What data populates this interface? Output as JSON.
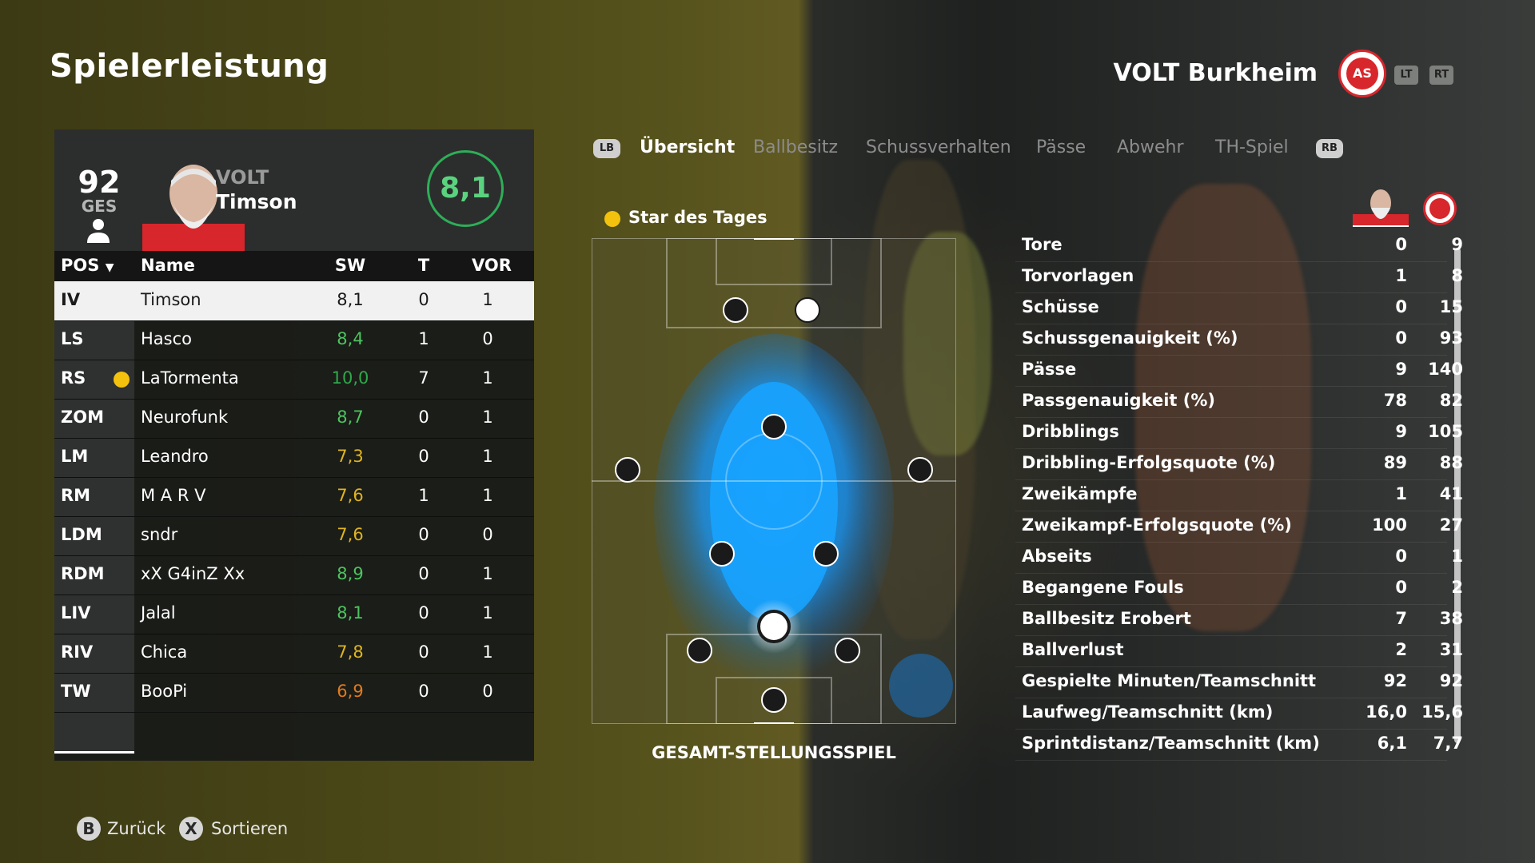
{
  "title": "Spielerleistung",
  "team": {
    "name": "VOLT Burkheim",
    "crest_icon": "club-crest-icon",
    "crest_color": "#d7262c"
  },
  "shoulder_buttons": {
    "lt": "LT",
    "rt": "RT",
    "lb": "LB",
    "rb": "RB"
  },
  "player_card": {
    "overall": "92",
    "overall_label": "GES",
    "club": "VOLT",
    "name": "Timson",
    "rating": "8,1"
  },
  "table": {
    "headers": {
      "pos": "POS",
      "name": "Name",
      "sw": "SW",
      "t": "T",
      "vor": "VOR"
    },
    "rows": [
      {
        "pos": "IV",
        "name": "Timson",
        "sw": "8,1",
        "t": "0",
        "vor": "1",
        "sw_color": "#1a1a1a"
      },
      {
        "pos": "LS",
        "name": "Hasco",
        "sw": "8,4",
        "t": "1",
        "vor": "0",
        "sw_color": "#4cc45f"
      },
      {
        "pos": "RS",
        "name": "LaTormenta",
        "sw": "10,0",
        "t": "7",
        "vor": "1",
        "sw_color": "#2ea84a",
        "star": true
      },
      {
        "pos": "ZOM",
        "name": "Neurofunk",
        "sw": "8,7",
        "t": "0",
        "vor": "1",
        "sw_color": "#4cc45f"
      },
      {
        "pos": "LM",
        "name": "Leandro",
        "sw": "7,3",
        "t": "0",
        "vor": "1",
        "sw_color": "#e0b420"
      },
      {
        "pos": "RM",
        "name": "M A R V",
        "sw": "7,6",
        "t": "1",
        "vor": "1",
        "sw_color": "#e0b420"
      },
      {
        "pos": "LDM",
        "name": "sndr",
        "sw": "7,6",
        "t": "0",
        "vor": "0",
        "sw_color": "#e0b420"
      },
      {
        "pos": "RDM",
        "name": "xX G4inZ Xx",
        "sw": "8,9",
        "t": "0",
        "vor": "1",
        "sw_color": "#4cc45f"
      },
      {
        "pos": "LIV",
        "name": "Jalal",
        "sw": "8,1",
        "t": "0",
        "vor": "1",
        "sw_color": "#4cc45f"
      },
      {
        "pos": "RIV",
        "name": "Chica",
        "sw": "7,8",
        "t": "0",
        "vor": "1",
        "sw_color": "#e0b420"
      },
      {
        "pos": "TW",
        "name": "BooPi",
        "sw": "6,9",
        "t": "0",
        "vor": "0",
        "sw_color": "#e07a20"
      }
    ]
  },
  "tabs": [
    {
      "label": "Übersicht",
      "active": true
    },
    {
      "label": "Ballbesitz",
      "active": false
    },
    {
      "label": "Schussverhalten",
      "active": false
    },
    {
      "label": "Pässe",
      "active": false
    },
    {
      "label": "Abwehr",
      "active": false
    },
    {
      "label": "TH-Spiel",
      "active": false
    }
  ],
  "star_of_day": "Star des Tages",
  "pitch_caption": "GESAMT-STELLUNGSSPIEL",
  "stats": [
    {
      "label": "Tore",
      "player": "0",
      "team": "9"
    },
    {
      "label": "Torvorlagen",
      "player": "1",
      "team": "8"
    },
    {
      "label": "Schüsse",
      "player": "0",
      "team": "15"
    },
    {
      "label": "Schussgenauigkeit (%)",
      "player": "0",
      "team": "93"
    },
    {
      "label": "Pässe",
      "player": "9",
      "team": "140"
    },
    {
      "label": "Passgenauigkeit (%)",
      "player": "78",
      "team": "82"
    },
    {
      "label": "Dribblings",
      "player": "9",
      "team": "105"
    },
    {
      "label": "Dribbling-Erfolgsquote (%)",
      "player": "89",
      "team": "88"
    },
    {
      "label": "Zweikämpfe",
      "player": "1",
      "team": "41"
    },
    {
      "label": "Zweikampf-Erfolgsquote (%)",
      "player": "100",
      "team": "27"
    },
    {
      "label": "Abseits",
      "player": "0",
      "team": "1"
    },
    {
      "label": "Begangene Fouls",
      "player": "0",
      "team": "2"
    },
    {
      "label": "Ballbesitz Erobert",
      "player": "7",
      "team": "38"
    },
    {
      "label": "Ballverlust",
      "player": "2",
      "team": "31"
    },
    {
      "label": "Gespielte Minuten/Teamschnitt",
      "player": "92",
      "team": "92"
    },
    {
      "label": "Laufweg/Teamschnitt (km)",
      "player": "16,0",
      "team": "15,6"
    },
    {
      "label": "Sprintdistanz/Teamschnitt (km)",
      "player": "6,1",
      "team": "7,7"
    }
  ],
  "footer": {
    "back_key": "B",
    "back_label": "Zurück",
    "sort_key": "X",
    "sort_label": "Sortieren"
  },
  "colors": {
    "rating_ring": "#2eae58",
    "heatmap": "#1a9bff",
    "star": "#f2c20e"
  }
}
